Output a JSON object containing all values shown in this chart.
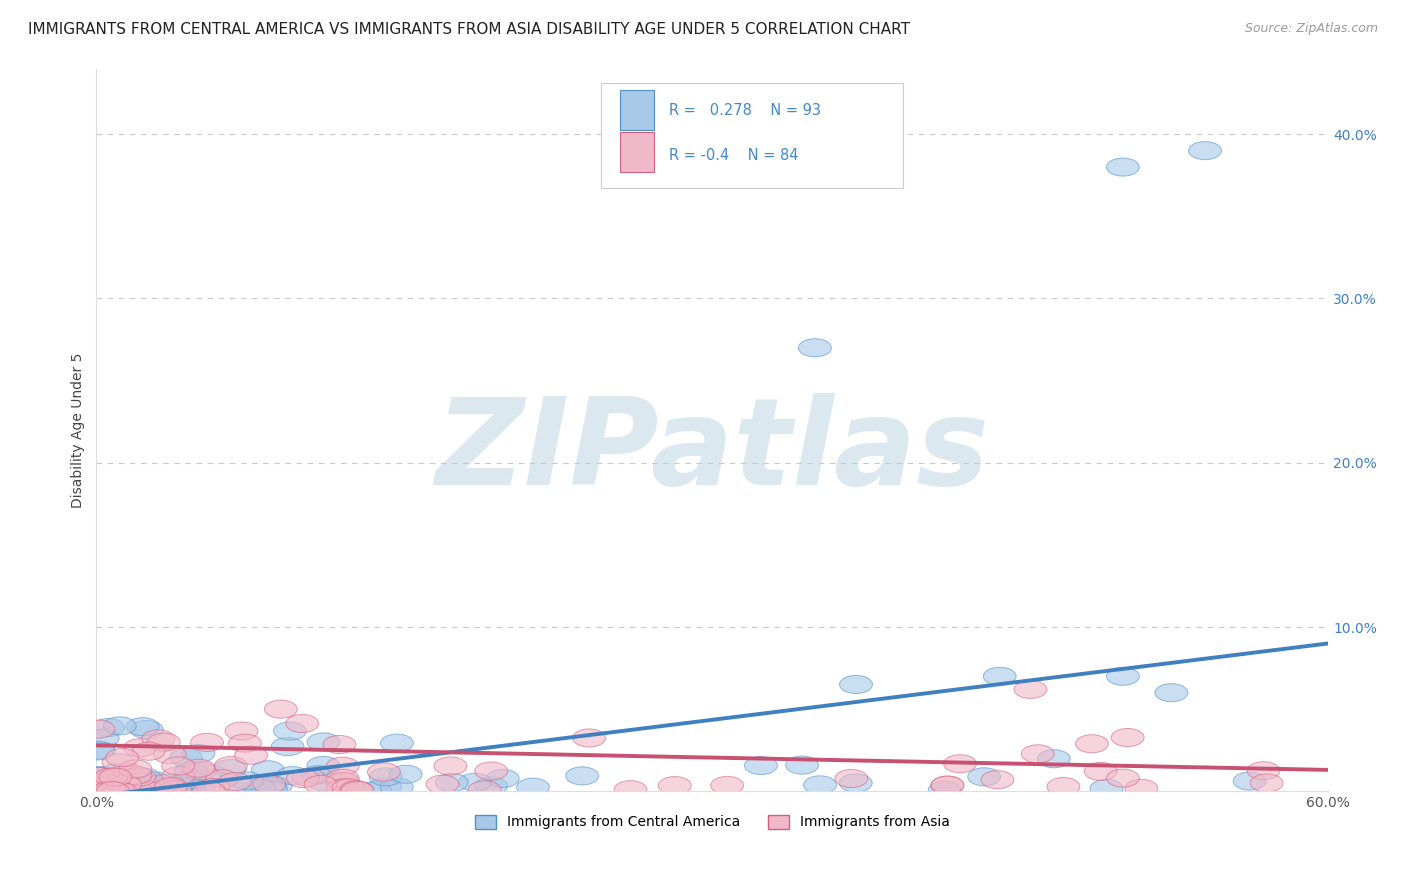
{
  "title": "IMMIGRANTS FROM CENTRAL AMERICA VS IMMIGRANTS FROM ASIA DISABILITY AGE UNDER 5 CORRELATION CHART",
  "source": "Source: ZipAtlas.com",
  "ylabel": "Disability Age Under 5",
  "xlim": [
    0.0,
    0.6
  ],
  "ylim": [
    0.0,
    0.44
  ],
  "yticks": [
    0.1,
    0.2,
    0.3,
    0.4
  ],
  "ytick_labels": [
    "10.0%",
    "20.0%",
    "30.0%",
    "40.0%"
  ],
  "xticks": [
    0.0,
    0.6
  ],
  "xtick_labels": [
    "0.0%",
    "60.0%"
  ],
  "series": [
    {
      "name": "Immigrants from Central America",
      "color": "#a8c8e8",
      "edge_color": "#5090c8",
      "line_color": "#4080c0",
      "R": 0.278,
      "N": 93
    },
    {
      "name": "Immigrants from Asia",
      "color": "#f0b8c8",
      "edge_color": "#d06080",
      "line_color": "#c85070",
      "R": -0.4,
      "N": 84
    }
  ],
  "legend_color": "#4488cc",
  "background_color": "#ffffff",
  "grid_color": "#c8c8c8",
  "watermark": "ZIPatlas",
  "watermark_color": "#dce8f0",
  "title_fontsize": 11,
  "tick_color": "#4080c0"
}
